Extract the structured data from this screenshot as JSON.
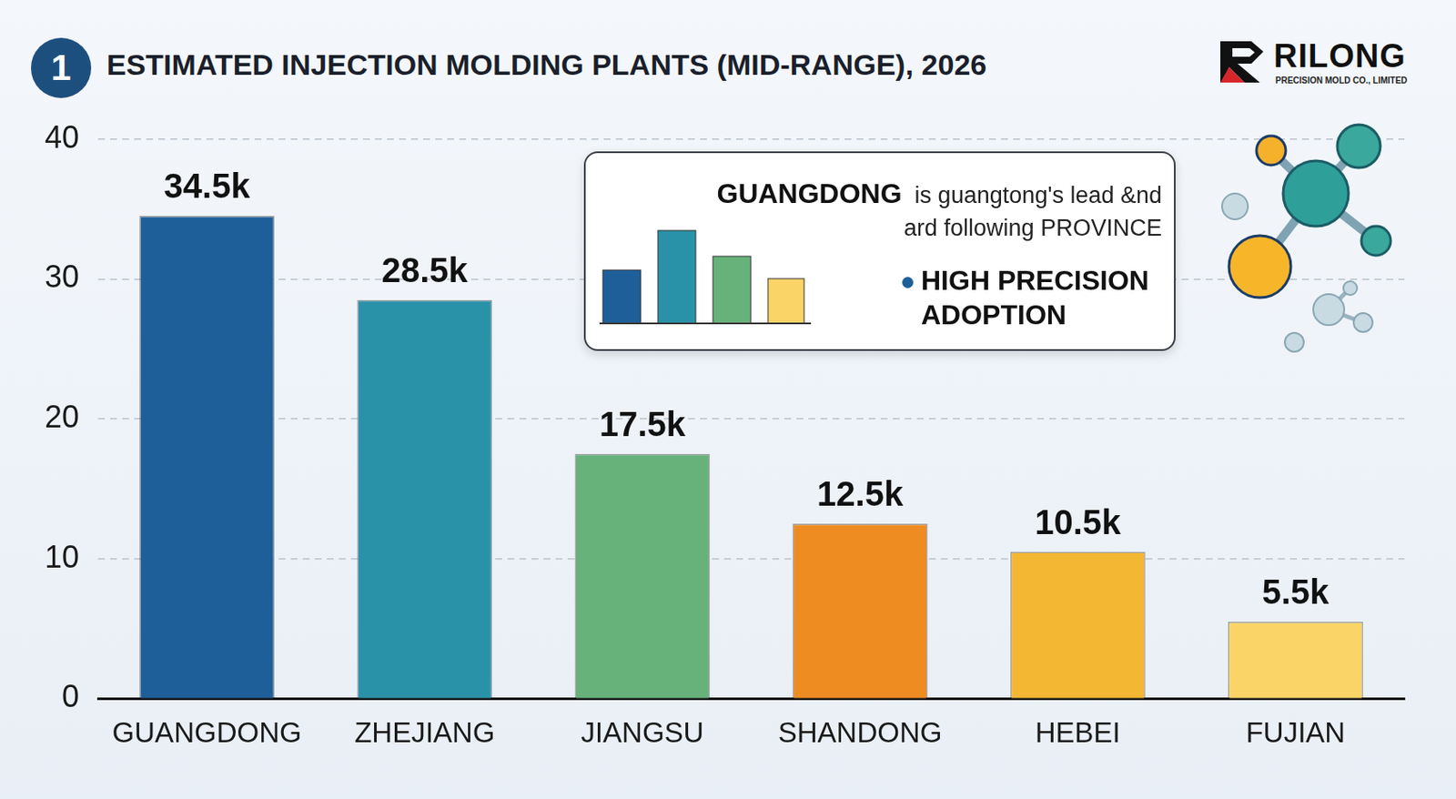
{
  "header": {
    "badge": "1",
    "logo": "RILONG",
    "logo_subtitle": "PRECISION MOLD CO., LIMITED"
  },
  "chart_data": {
    "type": "bar",
    "title": "ESTIMATED INJECTION MOLDING PLANTS (MID-RANGE), 2026",
    "categories": [
      "GUANGDONG",
      "ZHEJIANG",
      "JIANGSU",
      "SHANDONG",
      "HEBEI",
      "FUJIAN"
    ],
    "values": [
      34.5,
      28.5,
      17.5,
      12.5,
      10.5,
      5.5
    ],
    "value_labels": [
      "34.5k",
      "28.5k",
      "17.5k",
      "12.5k",
      "10.5k",
      "5.5k"
    ],
    "colors": [
      "#1f5f99",
      "#2a92a8",
      "#66b27a",
      "#ef8c21",
      "#f4b733",
      "#fad466"
    ],
    "ylim": [
      0,
      40
    ],
    "yticks": [
      0,
      10,
      20,
      30,
      40
    ],
    "grid": true,
    "data_labels": true,
    "annotations": [
      {
        "title": "GUANGDONG",
        "text": "is guangtong's lead &nd ard following PROVINCE",
        "bullet": "HIGH PRECISION ADOPTION"
      }
    ]
  }
}
